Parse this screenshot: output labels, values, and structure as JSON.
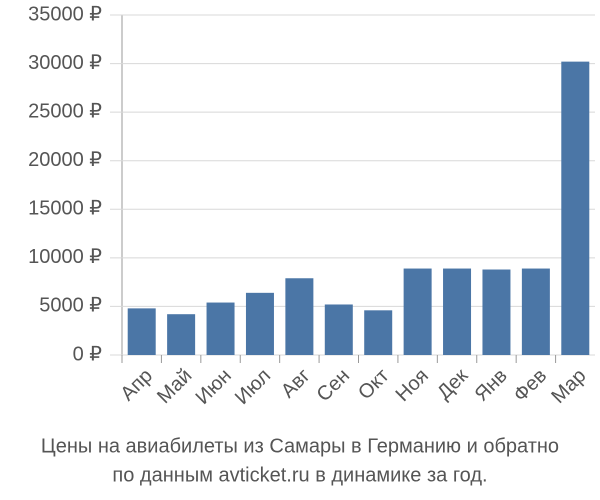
{
  "chart_data": {
    "type": "bar",
    "title": [
      "Цены на авиабилеты из Самары в Германию и обратно",
      "по данным avticket.ru в динамике за год."
    ],
    "categories": [
      "Апр",
      "Май",
      "Июн",
      "Июл",
      "Авг",
      "Сен",
      "Окт",
      "Ноя",
      "Дек",
      "Янв",
      "Фев",
      "Мар"
    ],
    "values": [
      4800,
      4200,
      5400,
      6400,
      7900,
      5200,
      4600,
      8900,
      8900,
      8800,
      8900,
      30200
    ],
    "color": "#4b76a6",
    "ylim": [
      0,
      35000
    ],
    "yticks": [
      {
        "value": 0,
        "label": "0 ₽"
      },
      {
        "value": 5000,
        "label": "5000 ₽"
      },
      {
        "value": 10000,
        "label": "10000 ₽"
      },
      {
        "value": 15000,
        "label": "15000 ₽"
      },
      {
        "value": 20000,
        "label": "20000 ₽"
      },
      {
        "value": 25000,
        "label": "25000 ₽"
      },
      {
        "value": 30000,
        "label": "30000 ₽"
      },
      {
        "value": 35000,
        "label": "35000 ₽"
      }
    ],
    "grid": true
  }
}
